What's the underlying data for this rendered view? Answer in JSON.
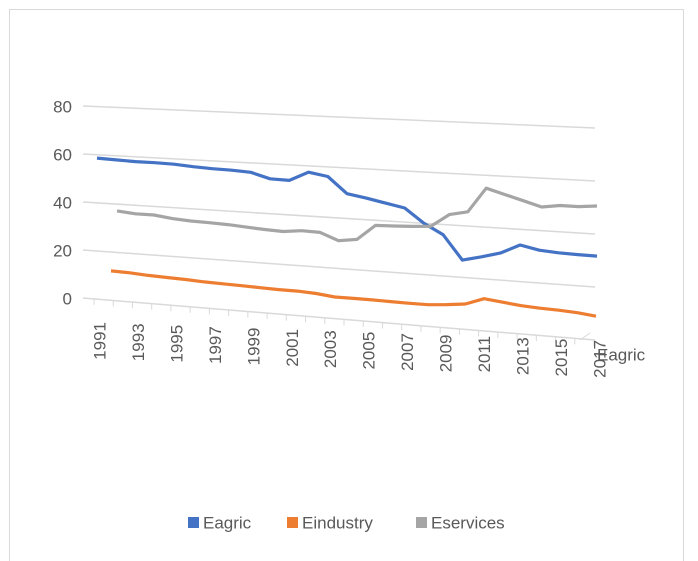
{
  "chart_data": {
    "type": "line3d",
    "categories": [
      "1991",
      null,
      "1993",
      null,
      "1995",
      null,
      "1997",
      null,
      "1999",
      null,
      "2001",
      null,
      "2003",
      null,
      "2005",
      null,
      "2007",
      null,
      "2009",
      null,
      "2011",
      null,
      "2013",
      null,
      "2015",
      null,
      "2017"
    ],
    "series": [
      {
        "name": "Eagric",
        "color": "#4472c4",
        "values": [
          58.6,
          58.3,
          58,
          58,
          57.8,
          57.2,
          56.8,
          56.6,
          56.2,
          54,
          53.8,
          57.5,
          56.2,
          49.8,
          48.5,
          47,
          45.5,
          40,
          36,
          26.7,
          28.5,
          30.5,
          34,
          32.5,
          32,
          31.8,
          31.7
        ]
      },
      {
        "name": "Eindustry",
        "color": "#ed7d31",
        "values": [
          12.2,
          12,
          11.5,
          11.2,
          11,
          10.6,
          10.4,
          10.2,
          10,
          9.8,
          9.8,
          9.4,
          8.6,
          8.6,
          8.6,
          8.5,
          8.4,
          8.4,
          9,
          9.8,
          12.4,
          11.6,
          10.8,
          10.4,
          10.2,
          9.8,
          9
        ]
      },
      {
        "name": "Eservices",
        "color": "#a5a5a5",
        "values": [
          37.2,
          36.5,
          36.5,
          35.5,
          35,
          34.8,
          34.5,
          34,
          33.5,
          33.2,
          34,
          33.8,
          31,
          32,
          38,
          38.2,
          38.5,
          39,
          44,
          45.5,
          55,
          53,
          51,
          49,
          50,
          50,
          50.6
        ]
      }
    ],
    "depth_label": "Eagric",
    "ylim": [
      0,
      80
    ],
    "yticks": [
      0,
      20,
      40,
      60,
      80
    ],
    "grid": true,
    "legend": "bottom"
  }
}
